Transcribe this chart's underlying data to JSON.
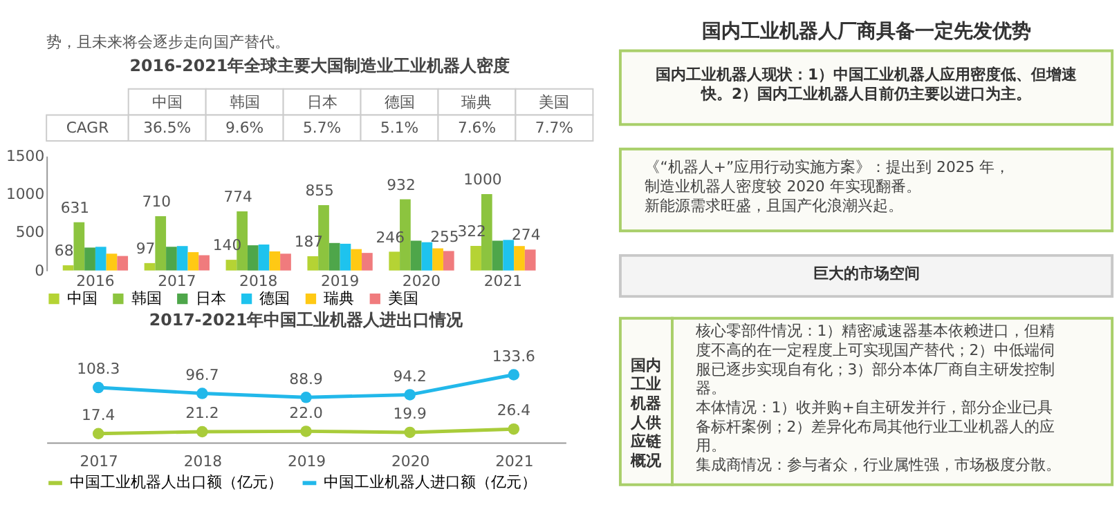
{
  "chart_data": [
    {
      "type": "bar",
      "title": "2016-2021年全球主要大国制造业工业机器人密度",
      "annotations": [
        "势，且未来将会逐步走向国产替代。"
      ],
      "categories": [
        "2016",
        "2017",
        "2018",
        "2019",
        "2020",
        "2021"
      ],
      "series": [
        {
          "name": "中国",
          "color": "#b5d334",
          "values": [
            68,
            97,
            140,
            187,
            246,
            322
          ],
          "value_labels": [
            "68",
            "97",
            "140",
            "187",
            "246",
            "322"
          ]
        },
        {
          "name": "韩国",
          "color": "#8cc43f",
          "values": [
            631,
            710,
            774,
            855,
            932,
            1000
          ],
          "value_labels": [
            "631",
            "710",
            "774",
            "855",
            "932",
            "1000"
          ]
        },
        {
          "name": "日本",
          "color": "#4ea64a",
          "values": [
            300,
            310,
            330,
            360,
            390,
            390
          ]
        },
        {
          "name": "德国",
          "color": "#1ec3ee",
          "values": [
            310,
            320,
            340,
            350,
            370,
            400
          ]
        },
        {
          "name": "瑞典",
          "color": "#ffc914",
          "values": [
            220,
            240,
            250,
            280,
            290,
            320
          ]
        },
        {
          "name": "美国",
          "color": "#f07b7d",
          "values": [
            190,
            200,
            220,
            230,
            255,
            274
          ],
          "value_labels": [
            null,
            null,
            null,
            null,
            "255",
            "274"
          ]
        }
      ],
      "ylim": [
        0,
        1500
      ],
      "yticks": [
        0,
        500,
        1000,
        1500
      ],
      "grid": false,
      "legend": "bottom"
    },
    {
      "type": "other",
      "categories": [
        "中国",
        "韩国",
        "日本",
        "德国",
        "瑞典",
        "美国"
      ],
      "annotations": [
        "CAGR",
        "36.5%",
        "9.6%",
        "5.7%",
        "5.1%",
        "7.6%",
        "7.7%"
      ]
    },
    {
      "type": "line",
      "title": "2017-2021年中国工业机器人进出口情况",
      "categories": [
        "2017",
        "2018",
        "2019",
        "2020",
        "2021"
      ],
      "series": [
        {
          "name": "中国工业机器人出口额（亿元）",
          "color": "#a9cc3a",
          "values": [
            17.4,
            21.2,
            22.0,
            19.9,
            26.4
          ],
          "value_labels": [
            "17.4",
            "21.2",
            "22.0",
            "19.9",
            "26.4"
          ]
        },
        {
          "name": "中国工业机器人进口额（亿元）",
          "color": "#22b8ea",
          "values": [
            108.3,
            96.7,
            88.9,
            94.2,
            133.6
          ],
          "value_labels": [
            "108.3",
            "96.7",
            "88.9",
            "94.2",
            "133.6"
          ]
        }
      ],
      "marker": "circle",
      "line_style": "solid",
      "grid": false,
      "legend": "bottom",
      "tick_labels": "x"
    },
    {
      "type": "other",
      "title": "国内工业机器人厂商具备一定先发优势",
      "annotations": [
        "国内工业机器人现状：1）中国工业机器人应用密度低、但增速快。2）国内工业机器人目前仍主要以进口为主。",
        "《“机器人+”应用行动实施方案》：提出到 2025 年，制造业机器人密度较 2020 年实现翻番。",
        "新能源需求旺盛，且国产化浪潮兴起。",
        "巨大的市场空间",
        "国内工业机器人供应链概况",
        "核心零部件情况：1）精密减速器基本依赖进口，但精度不高的在一定程度上可实现国产替代；2）中低端伺服已逐步实现自有化；3）部分本体厂商自主研发控制器。",
        "本体情况：1）收并购+自主研发并行，部分企业已具备标杆案例；2）差异化布局其他行业工业机器人的应用。",
        "集成商情况：参与者众，行业属性强，市场极度分散。"
      ]
    }
  ]
}
